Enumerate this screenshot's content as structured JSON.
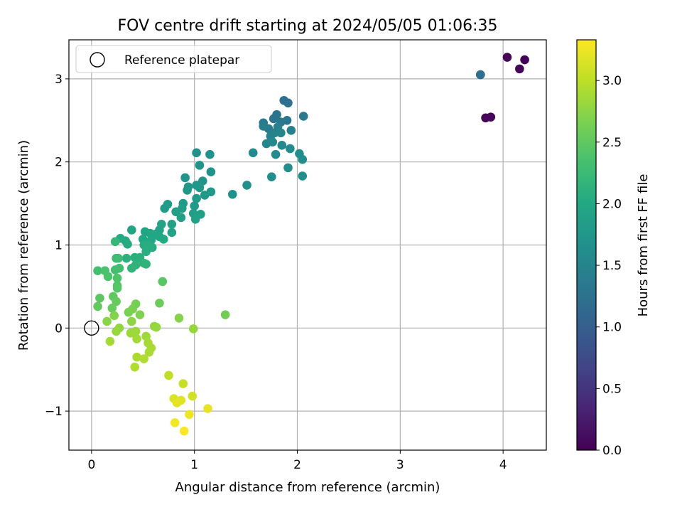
{
  "chart_data": {
    "type": "scatter",
    "title": "FOV centre drift starting at 2024/05/05 01:06:35",
    "xlabel": "Angular distance from reference (arcmin)",
    "ylabel": "Rotation from reference (arcmin)",
    "xlim": [
      -0.22,
      4.42
    ],
    "ylim": [
      -1.47,
      3.47
    ],
    "xticks": [
      0,
      1,
      2,
      3,
      4
    ],
    "yticks": [
      -1,
      0,
      1,
      2,
      3
    ],
    "xtick_labels": [
      "0",
      "1",
      "2",
      "3",
      "4"
    ],
    "ytick_labels": [
      "−1",
      "0",
      "1",
      "2",
      "3"
    ],
    "grid": true,
    "legend": {
      "position": "top-left",
      "entries": [
        "Reference platepar"
      ]
    },
    "reference_point": {
      "x": 0,
      "y": 0,
      "marker": "open-circle",
      "label": "Reference platepar"
    },
    "colorbar": {
      "label": "Hours from first FF file",
      "colormap": "viridis",
      "range": [
        0,
        3.33
      ],
      "ticks": [
        0.0,
        0.5,
        1.0,
        1.5,
        2.0,
        2.5,
        3.0
      ],
      "tick_labels": [
        "0.0",
        "0.5",
        "1.0",
        "1.5",
        "2.0",
        "2.5",
        "3.0"
      ]
    },
    "points": [
      {
        "x": 4.04,
        "y": 3.26,
        "h": 0.02
      },
      {
        "x": 4.21,
        "y": 3.23,
        "h": 0.03
      },
      {
        "x": 4.16,
        "y": 3.12,
        "h": 0.04
      },
      {
        "x": 3.83,
        "y": 2.53,
        "h": 0.05
      },
      {
        "x": 3.88,
        "y": 2.54,
        "h": 0.06
      },
      {
        "x": 3.78,
        "y": 3.05,
        "h": 1.15
      },
      {
        "x": 3.78,
        "y": 3.05,
        "h": 1.2
      },
      {
        "x": 1.87,
        "y": 2.74,
        "h": 1.22
      },
      {
        "x": 1.91,
        "y": 2.71,
        "h": 1.24
      },
      {
        "x": 1.8,
        "y": 2.57,
        "h": 1.26
      },
      {
        "x": 1.77,
        "y": 2.52,
        "h": 1.28
      },
      {
        "x": 1.9,
        "y": 2.5,
        "h": 1.3
      },
      {
        "x": 1.84,
        "y": 2.48,
        "h": 1.32
      },
      {
        "x": 2.06,
        "y": 2.55,
        "h": 1.34
      },
      {
        "x": 1.67,
        "y": 2.47,
        "h": 1.36
      },
      {
        "x": 1.72,
        "y": 2.4,
        "h": 1.38
      },
      {
        "x": 1.67,
        "y": 2.43,
        "h": 1.4
      },
      {
        "x": 1.81,
        "y": 2.42,
        "h": 1.42
      },
      {
        "x": 1.94,
        "y": 2.38,
        "h": 1.44
      },
      {
        "x": 1.74,
        "y": 2.31,
        "h": 1.46
      },
      {
        "x": 1.78,
        "y": 2.35,
        "h": 1.48
      },
      {
        "x": 1.84,
        "y": 2.35,
        "h": 1.5
      },
      {
        "x": 1.7,
        "y": 2.22,
        "h": 1.52
      },
      {
        "x": 1.76,
        "y": 2.24,
        "h": 1.54
      },
      {
        "x": 1.85,
        "y": 2.2,
        "h": 1.56
      },
      {
        "x": 1.79,
        "y": 2.09,
        "h": 1.57
      },
      {
        "x": 1.93,
        "y": 2.16,
        "h": 1.58
      },
      {
        "x": 1.57,
        "y": 2.11,
        "h": 1.59
      },
      {
        "x": 2.02,
        "y": 2.1,
        "h": 1.6
      },
      {
        "x": 2.05,
        "y": 2.03,
        "h": 1.61
      },
      {
        "x": 1.91,
        "y": 1.93,
        "h": 1.62
      },
      {
        "x": 1.75,
        "y": 1.82,
        "h": 1.63
      },
      {
        "x": 2.05,
        "y": 1.83,
        "h": 1.64
      },
      {
        "x": 1.51,
        "y": 1.72,
        "h": 1.65
      },
      {
        "x": 1.37,
        "y": 1.61,
        "h": 1.66
      },
      {
        "x": 1.02,
        "y": 2.11,
        "h": 1.67
      },
      {
        "x": 1.15,
        "y": 2.09,
        "h": 1.68
      },
      {
        "x": 1.05,
        "y": 1.96,
        "h": 1.69
      },
      {
        "x": 1.16,
        "y": 1.88,
        "h": 1.7
      },
      {
        "x": 0.91,
        "y": 1.81,
        "h": 1.71
      },
      {
        "x": 1.08,
        "y": 1.77,
        "h": 1.72
      },
      {
        "x": 0.94,
        "y": 1.7,
        "h": 1.73
      },
      {
        "x": 1.02,
        "y": 1.72,
        "h": 1.74
      },
      {
        "x": 0.93,
        "y": 1.66,
        "h": 1.75
      },
      {
        "x": 1.05,
        "y": 1.69,
        "h": 1.76
      },
      {
        "x": 1.16,
        "y": 1.64,
        "h": 1.77
      },
      {
        "x": 1.1,
        "y": 1.6,
        "h": 1.78
      },
      {
        "x": 1.02,
        "y": 1.56,
        "h": 1.79
      },
      {
        "x": 1.0,
        "y": 1.47,
        "h": 1.8
      },
      {
        "x": 0.89,
        "y": 1.5,
        "h": 1.81
      },
      {
        "x": 0.74,
        "y": 1.49,
        "h": 1.82
      },
      {
        "x": 0.71,
        "y": 1.44,
        "h": 1.83
      },
      {
        "x": 0.88,
        "y": 1.44,
        "h": 1.84
      },
      {
        "x": 0.82,
        "y": 1.4,
        "h": 1.85
      },
      {
        "x": 0.99,
        "y": 1.38,
        "h": 1.86
      },
      {
        "x": 1.06,
        "y": 1.37,
        "h": 1.87
      },
      {
        "x": 0.87,
        "y": 1.33,
        "h": 1.88
      },
      {
        "x": 1.01,
        "y": 1.31,
        "h": 1.89
      },
      {
        "x": 0.78,
        "y": 1.25,
        "h": 1.9
      },
      {
        "x": 0.68,
        "y": 1.25,
        "h": 1.91
      },
      {
        "x": 0.78,
        "y": 1.15,
        "h": 1.92
      },
      {
        "x": 0.66,
        "y": 1.18,
        "h": 1.93
      },
      {
        "x": 0.39,
        "y": 1.18,
        "h": 1.94
      },
      {
        "x": 0.52,
        "y": 1.16,
        "h": 1.95
      },
      {
        "x": 0.57,
        "y": 1.14,
        "h": 1.96
      },
      {
        "x": 0.62,
        "y": 1.13,
        "h": 1.97
      },
      {
        "x": 0.66,
        "y": 1.1,
        "h": 1.98
      },
      {
        "x": 0.5,
        "y": 1.07,
        "h": 1.99
      },
      {
        "x": 0.58,
        "y": 1.06,
        "h": 2.0
      },
      {
        "x": 0.7,
        "y": 1.07,
        "h": 2.01
      },
      {
        "x": 0.28,
        "y": 1.08,
        "h": 2.02
      },
      {
        "x": 0.33,
        "y": 1.05,
        "h": 2.03
      },
      {
        "x": 0.35,
        "y": 1.01,
        "h": 2.04
      },
      {
        "x": 0.51,
        "y": 1.0,
        "h": 2.05
      },
      {
        "x": 0.55,
        "y": 0.99,
        "h": 2.06
      },
      {
        "x": 0.59,
        "y": 0.97,
        "h": 2.07
      },
      {
        "x": 0.53,
        "y": 0.92,
        "h": 2.08
      },
      {
        "x": 0.42,
        "y": 0.85,
        "h": 2.09
      },
      {
        "x": 0.47,
        "y": 0.85,
        "h": 2.1
      },
      {
        "x": 0.34,
        "y": 0.84,
        "h": 2.11
      },
      {
        "x": 0.48,
        "y": 0.8,
        "h": 2.12
      },
      {
        "x": 0.51,
        "y": 0.78,
        "h": 2.13
      },
      {
        "x": 0.53,
        "y": 0.77,
        "h": 2.14
      },
      {
        "x": 0.43,
        "y": 0.76,
        "h": 2.15
      },
      {
        "x": 0.39,
        "y": 0.72,
        "h": 2.16
      },
      {
        "x": 0.23,
        "y": 1.04,
        "h": 2.2
      },
      {
        "x": 0.24,
        "y": 0.84,
        "h": 2.25
      },
      {
        "x": 0.26,
        "y": 0.84,
        "h": 2.28
      },
      {
        "x": 0.27,
        "y": 0.72,
        "h": 2.3
      },
      {
        "x": 0.23,
        "y": 0.7,
        "h": 2.32
      },
      {
        "x": 0.06,
        "y": 0.69,
        "h": 2.34
      },
      {
        "x": 0.13,
        "y": 0.69,
        "h": 2.36
      },
      {
        "x": 0.16,
        "y": 0.62,
        "h": 2.38
      },
      {
        "x": 0.25,
        "y": 0.6,
        "h": 2.4
      },
      {
        "x": 0.25,
        "y": 0.51,
        "h": 2.42
      },
      {
        "x": 0.25,
        "y": 0.48,
        "h": 2.44
      },
      {
        "x": 0.69,
        "y": 0.56,
        "h": 2.46
      },
      {
        "x": 0.08,
        "y": 0.36,
        "h": 2.48
      },
      {
        "x": 0.21,
        "y": 0.38,
        "h": 2.5
      },
      {
        "x": 0.06,
        "y": 0.26,
        "h": 2.52
      },
      {
        "x": 0.24,
        "y": 0.32,
        "h": 2.54
      },
      {
        "x": 0.2,
        "y": 0.24,
        "h": 2.56
      },
      {
        "x": 0.66,
        "y": 0.3,
        "h": 2.58
      },
      {
        "x": 1.3,
        "y": 0.16,
        "h": 2.6
      },
      {
        "x": 0.43,
        "y": 0.29,
        "h": 2.62
      },
      {
        "x": 0.36,
        "y": 0.19,
        "h": 2.64
      },
      {
        "x": 0.4,
        "y": 0.23,
        "h": 2.66
      },
      {
        "x": 0.47,
        "y": 0.16,
        "h": 2.68
      },
      {
        "x": 0.22,
        "y": 0.15,
        "h": 2.7
      },
      {
        "x": 0.85,
        "y": 0.12,
        "h": 2.72
      },
      {
        "x": 0.15,
        "y": 0.08,
        "h": 2.74
      },
      {
        "x": 0.39,
        "y": 0.08,
        "h": 2.76
      },
      {
        "x": 0.27,
        "y": 0.0,
        "h": 2.78
      },
      {
        "x": 0.61,
        "y": 0.02,
        "h": 2.79
      },
      {
        "x": 0.63,
        "y": 0.01,
        "h": 2.8
      },
      {
        "x": 0.99,
        "y": -0.01,
        "h": 2.81
      },
      {
        "x": 0.24,
        "y": -0.04,
        "h": 2.82
      },
      {
        "x": 0.43,
        "y": -0.04,
        "h": 2.83
      },
      {
        "x": 0.38,
        "y": -0.06,
        "h": 2.84
      },
      {
        "x": 0.53,
        "y": -0.1,
        "h": 2.85
      },
      {
        "x": 0.44,
        "y": -0.13,
        "h": 2.86
      },
      {
        "x": 0.18,
        "y": -0.16,
        "h": 2.87
      },
      {
        "x": 0.55,
        "y": -0.18,
        "h": 2.88
      },
      {
        "x": 0.58,
        "y": -0.24,
        "h": 2.89
      },
      {
        "x": 0.56,
        "y": -0.29,
        "h": 2.9
      },
      {
        "x": 0.44,
        "y": -0.35,
        "h": 2.91
      },
      {
        "x": 0.51,
        "y": -0.37,
        "h": 2.92
      },
      {
        "x": 0.42,
        "y": -0.47,
        "h": 2.93
      },
      {
        "x": 0.75,
        "y": -0.57,
        "h": 3.0
      },
      {
        "x": 0.89,
        "y": -0.67,
        "h": 3.05
      },
      {
        "x": 0.98,
        "y": -0.82,
        "h": 3.1
      },
      {
        "x": 0.8,
        "y": -0.85,
        "h": 3.15
      },
      {
        "x": 0.87,
        "y": -0.87,
        "h": 3.18
      },
      {
        "x": 0.83,
        "y": -0.9,
        "h": 3.2
      },
      {
        "x": 1.13,
        "y": -0.97,
        "h": 3.22
      },
      {
        "x": 0.95,
        "y": -1.04,
        "h": 3.25
      },
      {
        "x": 0.81,
        "y": -1.14,
        "h": 3.28
      },
      {
        "x": 0.9,
        "y": -1.24,
        "h": 3.31
      }
    ]
  }
}
